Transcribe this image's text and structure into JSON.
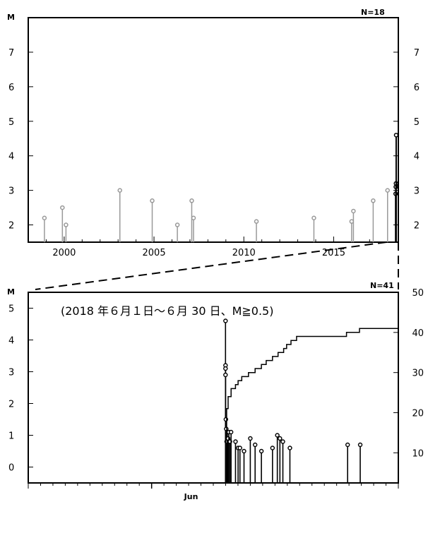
{
  "chart_data": [
    {
      "type": "scatter",
      "ylabel": "M",
      "n_label": "N=18",
      "xlim": [
        1998.0,
        2018.6
      ],
      "ylim": [
        1.5,
        8.0
      ],
      "x_ticks": [
        2000,
        2005,
        2010,
        2015
      ],
      "y_ticks": [
        2,
        3,
        4,
        5,
        6,
        7
      ],
      "colors": {
        "past": "#999999",
        "recent": "#000000"
      },
      "points": [
        {
          "x": 1998.9,
          "m": 2.2,
          "recent": false
        },
        {
          "x": 1999.9,
          "m": 2.5,
          "recent": false
        },
        {
          "x": 2000.1,
          "m": 2.0,
          "recent": false
        },
        {
          "x": 2003.1,
          "m": 3.0,
          "recent": false
        },
        {
          "x": 2004.9,
          "m": 2.7,
          "recent": false
        },
        {
          "x": 2006.3,
          "m": 2.0,
          "recent": false
        },
        {
          "x": 2007.1,
          "m": 2.7,
          "recent": false
        },
        {
          "x": 2007.2,
          "m": 2.2,
          "recent": false
        },
        {
          "x": 2010.7,
          "m": 2.1,
          "recent": false
        },
        {
          "x": 2013.9,
          "m": 2.2,
          "recent": false
        },
        {
          "x": 2016.0,
          "m": 2.1,
          "recent": false
        },
        {
          "x": 2016.1,
          "m": 2.4,
          "recent": false
        },
        {
          "x": 2017.2,
          "m": 2.7,
          "recent": false
        },
        {
          "x": 2018.0,
          "m": 3.0,
          "recent": false
        },
        {
          "x": 2018.45,
          "m": 2.9,
          "recent": true
        },
        {
          "x": 2018.46,
          "m": 3.1,
          "recent": true
        },
        {
          "x": 2018.47,
          "m": 3.2,
          "recent": true
        },
        {
          "x": 2018.48,
          "m": 4.6,
          "recent": true
        }
      ]
    },
    {
      "type": "scatter",
      "ylabel": "M",
      "n_label": "N=41",
      "period_label": "(2018 年６月１日～６月 30 日、M≧0.5)",
      "x_tick_label": "Jun",
      "xlim": [
        0.0,
        1.0
      ],
      "ylim": [
        -0.5,
        5.5
      ],
      "y_ticks": [
        0,
        1,
        2,
        3,
        4,
        5
      ],
      "right_ticks": [
        10,
        20,
        30,
        40,
        50
      ],
      "right_lim": [
        2.5,
        50
      ],
      "points": [
        {
          "x": 0.533,
          "m": 4.6
        },
        {
          "x": 0.533,
          "m": 3.2
        },
        {
          "x": 0.533,
          "m": 3.1
        },
        {
          "x": 0.533,
          "m": 2.9
        },
        {
          "x": 0.534,
          "m": 1.5
        },
        {
          "x": 0.535,
          "m": 1.2
        },
        {
          "x": 0.536,
          "m": 0.8
        },
        {
          "x": 0.538,
          "m": 1.1
        },
        {
          "x": 0.54,
          "m": 0.9
        },
        {
          "x": 0.542,
          "m": 1.1
        },
        {
          "x": 0.545,
          "m": 0.8
        },
        {
          "x": 0.548,
          "m": 1.1
        },
        {
          "x": 0.56,
          "m": 0.8
        },
        {
          "x": 0.567,
          "m": 0.6
        },
        {
          "x": 0.572,
          "m": 0.6
        },
        {
          "x": 0.583,
          "m": 0.5
        },
        {
          "x": 0.6,
          "m": 0.9
        },
        {
          "x": 0.613,
          "m": 0.7
        },
        {
          "x": 0.63,
          "m": 0.5
        },
        {
          "x": 0.66,
          "m": 0.6
        },
        {
          "x": 0.673,
          "m": 1.0
        },
        {
          "x": 0.68,
          "m": 0.9
        },
        {
          "x": 0.688,
          "m": 0.8
        },
        {
          "x": 0.707,
          "m": 0.6
        },
        {
          "x": 0.863,
          "m": 0.7
        },
        {
          "x": 0.897,
          "m": 0.7
        }
      ],
      "cumulative": [
        [
          0.533,
          5
        ],
        [
          0.534,
          14
        ],
        [
          0.536,
          21
        ],
        [
          0.54,
          24
        ],
        [
          0.548,
          26
        ],
        [
          0.56,
          27
        ],
        [
          0.567,
          28
        ],
        [
          0.577,
          29
        ],
        [
          0.595,
          30
        ],
        [
          0.613,
          31
        ],
        [
          0.63,
          32
        ],
        [
          0.643,
          33
        ],
        [
          0.66,
          34
        ],
        [
          0.675,
          35
        ],
        [
          0.69,
          36
        ],
        [
          0.698,
          37
        ],
        [
          0.71,
          38
        ],
        [
          0.725,
          39
        ],
        [
          0.86,
          40
        ],
        [
          0.895,
          41
        ],
        [
          1.0,
          41
        ]
      ]
    }
  ]
}
